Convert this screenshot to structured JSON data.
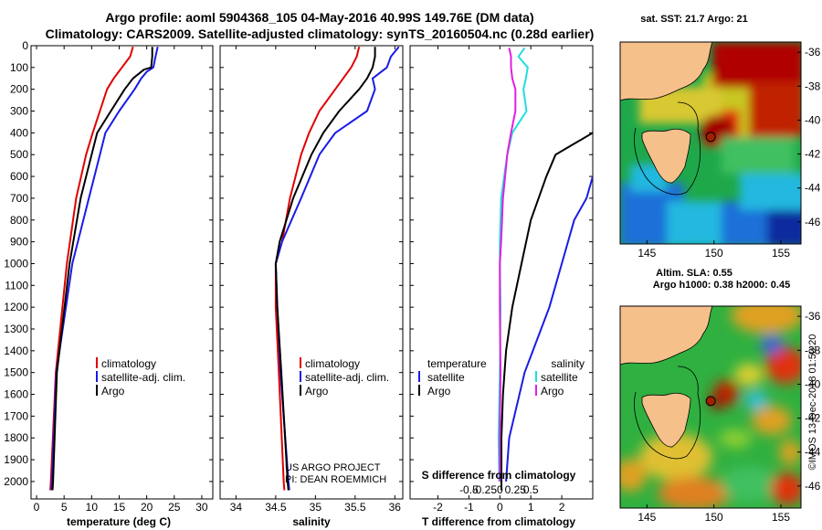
{
  "title_line1": "Argo profile: aoml 5904368_105 04-May-2016 40.99S 149.76E (DM data)",
  "title_line2": "Climatology: CARS2009. Satellite-adjusted climatology: synTS_20160504.nc (0.28d earlier)",
  "colors": {
    "climatology": "#e00000",
    "satellite": "#1a1ae6",
    "argo": "#000000",
    "t_sat": "#1a1ae6",
    "s_sat": "#22dddd",
    "s_diff": "#e020e0",
    "land": "#f5c08a",
    "coast": "#000000"
  },
  "chart_data": [
    {
      "type": "line",
      "name": "temperature",
      "xlabel": "temperature (deg C)",
      "ylabel": "",
      "xlim": [
        -1,
        32
      ],
      "ylim": [
        2080,
        0
      ],
      "xticks": [
        "0",
        "5",
        "10",
        "15",
        "20",
        "25",
        "30"
      ],
      "yticks": [
        "0",
        "100",
        "200",
        "300",
        "400",
        "500",
        "600",
        "700",
        "800",
        "900",
        "1000",
        "1100",
        "1200",
        "1300",
        "1400",
        "1500",
        "1600",
        "1700",
        "1800",
        "1900",
        "2000"
      ],
      "legend": [
        "climatology",
        "satellite-adj. clim.",
        "Argo"
      ],
      "series": [
        {
          "name": "climatology",
          "depth": [
            5,
            50,
            100,
            150,
            200,
            300,
            400,
            500,
            700,
            1000,
            1500,
            2000,
            2040
          ],
          "values": [
            17.5,
            17.0,
            15.5,
            14.0,
            12.8,
            11.5,
            10.2,
            9.0,
            7.2,
            5.5,
            3.5,
            2.6,
            2.5
          ]
        },
        {
          "name": "satellite-adj. clim.",
          "depth": [
            5,
            50,
            100,
            120,
            150,
            200,
            300,
            400,
            500,
            700,
            1000,
            1500,
            2000,
            2040
          ],
          "values": [
            22.0,
            21.6,
            21.2,
            20.0,
            19.0,
            17.8,
            15.0,
            12.5,
            11.5,
            9.5,
            6.5,
            3.6,
            2.8,
            2.7
          ]
        },
        {
          "name": "Argo",
          "depth": [
            5,
            50,
            100,
            110,
            150,
            200,
            300,
            400,
            500,
            700,
            1000,
            1500,
            2000,
            2040
          ],
          "values": [
            21.0,
            21.0,
            20.8,
            19.5,
            17.5,
            16.0,
            13.5,
            11.0,
            10.0,
            8.0,
            6.0,
            3.7,
            3.0,
            2.9
          ]
        }
      ]
    },
    {
      "type": "line",
      "name": "salinity",
      "xlabel": "salinity",
      "xlim": [
        33.8,
        36.1
      ],
      "ylim": [
        2080,
        0
      ],
      "xticks": [
        "34",
        "34.5",
        "35",
        "35.5",
        "36"
      ],
      "legend": [
        "climatology",
        "satellite-adj. clim.",
        "Argo"
      ],
      "series": [
        {
          "name": "climatology",
          "depth": [
            5,
            50,
            100,
            200,
            300,
            400,
            500,
            700,
            900,
            1000,
            1200,
            1500,
            2000,
            2040
          ],
          "values": [
            35.55,
            35.52,
            35.45,
            35.25,
            35.05,
            34.92,
            34.82,
            34.68,
            34.58,
            34.5,
            34.5,
            34.54,
            34.6,
            34.61
          ]
        },
        {
          "name": "satellite-adj. clim.",
          "depth": [
            5,
            50,
            100,
            150,
            200,
            300,
            400,
            500,
            700,
            900,
            1000,
            1200,
            1500,
            2000,
            2040
          ],
          "values": [
            36.05,
            35.95,
            35.9,
            35.72,
            35.75,
            35.65,
            35.25,
            35.05,
            34.82,
            34.58,
            34.5,
            34.52,
            34.56,
            34.66,
            34.67
          ]
        },
        {
          "name": "Argo",
          "depth": [
            5,
            50,
            100,
            150,
            200,
            300,
            400,
            500,
            700,
            900,
            1000,
            1200,
            1500,
            2000,
            2040
          ],
          "values": [
            35.75,
            35.75,
            35.72,
            35.65,
            35.55,
            35.3,
            35.1,
            34.95,
            34.72,
            34.55,
            34.5,
            34.52,
            34.57,
            34.65,
            34.66
          ]
        }
      ]
    },
    {
      "type": "line",
      "name": "differences",
      "xlabel": "T difference from climatology",
      "xlabel_top": "S difference from climatology",
      "xlim": [
        -2.9,
        3.0
      ],
      "ylim": [
        2080,
        0
      ],
      "xticks": [
        "-2",
        "-1",
        "0",
        "1",
        "2"
      ],
      "xticks_top": [
        "-0.5",
        "-0.25",
        "0",
        "0.25",
        "0.5"
      ],
      "legend_temperature_title": "temperature",
      "legend_salinity_title": "salinity",
      "legend_temperature": [
        "satellite",
        "Argo"
      ],
      "legend_salinity": [
        "satellite",
        "Argo"
      ],
      "series": [
        {
          "name": "T satellite",
          "depth": [
            600,
            700,
            800,
            1000,
            1200,
            1500,
            1800,
            2000
          ],
          "values": [
            3.0,
            2.8,
            2.4,
            2.0,
            1.6,
            0.8,
            0.3,
            0.2
          ]
        },
        {
          "name": "T Argo",
          "depth": [
            400,
            450,
            500,
            600,
            800,
            1000,
            1200,
            1400,
            1600,
            1800,
            2000,
            2040
          ],
          "values": [
            3.0,
            2.4,
            1.8,
            1.5,
            1.0,
            0.7,
            0.4,
            0.2,
            0.1,
            0.05,
            0.05,
            0.05
          ]
        },
        {
          "name": "S satellite",
          "depth": [
            10,
            50,
            100,
            150,
            200,
            300,
            400,
            500,
            700,
            900,
            1000,
            1200,
            1500,
            1800,
            2000
          ],
          "values": [
            0.4,
            0.3,
            0.45,
            0.42,
            0.38,
            0.43,
            0.2,
            0.12,
            0.02,
            0.0,
            0.0,
            0.01,
            0.0,
            -0.02,
            -0.01
          ]
        },
        {
          "name": "S Argo",
          "depth": [
            10,
            50,
            100,
            150,
            200,
            300,
            400,
            500,
            700,
            900,
            1000,
            1200,
            1500,
            1800,
            2000
          ],
          "values": [
            0.15,
            0.18,
            0.18,
            0.2,
            0.25,
            0.25,
            0.18,
            0.12,
            0.05,
            0.02,
            0.0,
            0.0,
            0.01,
            0.0,
            0.0
          ]
        }
      ]
    },
    {
      "type": "heatmap",
      "name": "sst_map",
      "title": "sat. SST: 21.7 Argo: 21",
      "xlim": [
        143,
        156.5
      ],
      "ylim": [
        -47.3,
        -35.4
      ],
      "xticks": [
        "145",
        "150",
        "155"
      ],
      "yticks": [
        "-36",
        "-38",
        "-40",
        "-42",
        "-44",
        "-46"
      ],
      "argo_position": [
        149.76,
        -40.99
      ]
    },
    {
      "type": "heatmap",
      "name": "sla_map",
      "title": "Altim. SLA: 0.55",
      "title2": "Argo h1000: 0.38 h2000: 0.45",
      "xlim": [
        143,
        156.5
      ],
      "ylim": [
        -47.3,
        -35.4
      ],
      "xticks": [
        "145",
        "150",
        "155"
      ],
      "yticks": [
        "-36",
        "-38",
        "-40",
        "-42",
        "-44",
        "-46"
      ],
      "argo_position": [
        149.76,
        -40.99
      ]
    }
  ],
  "credit_line1": "US ARGO PROJECT",
  "credit_line2": "PI: DEAN ROEMMICH",
  "imos_credit": "©IMOS 13-Dec-2018 01:50:20"
}
